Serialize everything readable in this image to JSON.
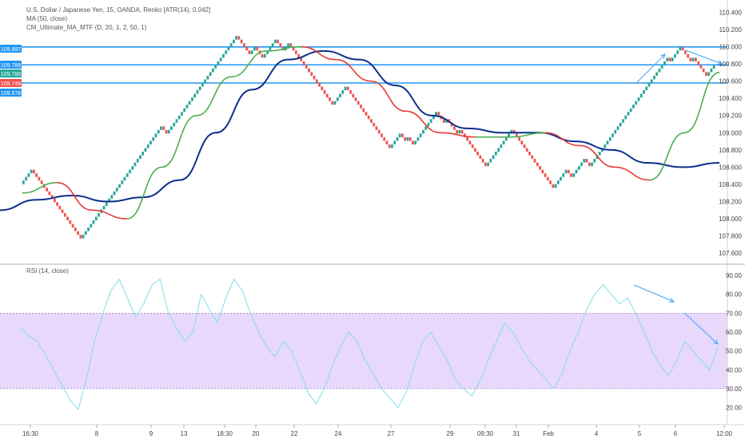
{
  "legend": {
    "symbol_line": "U.S. Dollar / Japanese Yen, 15, OANDA, Renko [ATR(14), 0.042]",
    "ma_line": "MA (50, close)",
    "cm_line": "CM_Ultimate_MA_MTF (D, 20, 1, 2, 50, 1)"
  },
  "rsi_title": "RSI (14, close)",
  "colors": {
    "up_brick": "#26a69a",
    "down_brick": "#ef5350",
    "ma50": "#0d2f8c",
    "cm_red": "#e53935",
    "cm_green": "#4caf50",
    "levels": "#2196f3",
    "rsi_line": "#80deea",
    "rsi_band": "#e8d8fb",
    "annotation": "#42a5f5"
  },
  "price_axis_ticks": [
    "110.400",
    "110.200",
    "110.000",
    "109.800",
    "109.600",
    "109.400",
    "109.200",
    "109.000",
    "108.800",
    "108.600",
    "108.400",
    "108.200",
    "108.000",
    "107.800",
    "107.600"
  ],
  "price_badges": [
    {
      "label": "109.997",
      "color": "#2196f3"
    },
    {
      "label": "109.789",
      "color": "#2196f3"
    },
    {
      "label": "109.788",
      "color": "#26a69a"
    },
    {
      "label": "109.749",
      "color": "#ef5350"
    },
    {
      "label": "109.578",
      "color": "#2196f3"
    }
  ],
  "rsi_axis_ticks": [
    "90.00",
    "80.00",
    "70.00",
    "60.00",
    "50.00",
    "40.00",
    "30.00",
    "20.00"
  ],
  "time_axis_ticks": [
    "16:30",
    "8",
    "9",
    "13",
    "18:30",
    "20",
    "22",
    "24",
    "27",
    "29",
    "09:30",
    "31",
    "Feb",
    "4",
    "5",
    "6",
    "12:00"
  ],
  "chart_data": [
    {
      "type": "renko",
      "title": "U.S. Dollar / Japanese Yen, 15, OANDA, Renko [ATR(14), 0.042]",
      "ylim": [
        107.5,
        110.45
      ],
      "brick_size": 0.042,
      "horizontal_levels": [
        109.997,
        109.789,
        109.578
      ],
      "price_path": [
        108.4,
        108.58,
        108.26,
        107.74,
        108.4,
        108.9,
        109.1,
        108.95,
        109.6,
        109.8,
        110.15,
        109.9,
        110.0,
        109.85,
        110.12,
        109.95,
        110.05,
        109.85,
        109.55,
        109.3,
        109.55,
        109.2,
        108.8,
        109.0,
        108.9,
        108.95,
        108.85,
        109.0,
        108.95,
        109.25,
        109.1,
        109.2,
        108.95,
        109.05,
        108.8,
        108.6,
        108.95,
        109.05,
        108.55,
        108.35,
        108.6,
        108.45,
        108.7,
        108.6,
        109.1,
        109.45,
        109.6,
        109.8,
        109.85,
        109.9,
        109.8,
        110.0,
        109.8,
        109.9,
        109.65,
        109.8
      ],
      "series": [
        {
          "name": "MA (50, close)",
          "x_frac": [
            0,
            0.05,
            0.1,
            0.15,
            0.2,
            0.25,
            0.3,
            0.35,
            0.4,
            0.45,
            0.5,
            0.55,
            0.6,
            0.65,
            0.7,
            0.75,
            0.8,
            0.85,
            0.9,
            0.95,
            1
          ],
          "values": [
            108.1,
            108.22,
            108.27,
            108.2,
            108.25,
            108.45,
            109.0,
            109.5,
            109.85,
            109.95,
            109.85,
            109.55,
            109.2,
            109.05,
            109.0,
            109.0,
            108.9,
            108.8,
            108.65,
            108.6,
            108.65
          ]
        },
        {
          "name": "CM_Ultimate_MA_MTF",
          "x_frac": [
            0,
            0.05,
            0.1,
            0.15,
            0.2,
            0.25,
            0.3,
            0.35,
            0.4,
            0.45,
            0.5,
            0.55,
            0.6,
            0.65,
            0.7,
            0.75,
            0.8,
            0.85,
            0.9,
            0.95,
            1
          ],
          "values": [
            108.3,
            108.42,
            108.1,
            108.0,
            108.6,
            109.2,
            109.65,
            109.95,
            110.0,
            109.85,
            109.6,
            109.25,
            109.0,
            108.95,
            108.95,
            109.0,
            108.85,
            108.6,
            108.45,
            109.0,
            109.7
          ]
        }
      ]
    },
    {
      "type": "line",
      "title": "RSI (14, close)",
      "ylim": [
        16,
        93
      ],
      "band": [
        30,
        70
      ],
      "series": [
        {
          "name": "RSI (14, close)",
          "values": [
            62,
            58,
            55,
            48,
            40,
            32,
            24,
            19,
            35,
            55,
            70,
            82,
            88,
            78,
            68,
            75,
            85,
            88,
            70,
            62,
            55,
            60,
            80,
            72,
            65,
            78,
            88,
            82,
            70,
            60,
            52,
            47,
            55,
            50,
            40,
            28,
            22,
            30,
            42,
            52,
            60,
            55,
            45,
            38,
            30,
            25,
            20,
            28,
            42,
            55,
            60,
            52,
            45,
            35,
            30,
            26,
            34,
            45,
            55,
            65,
            60,
            52,
            45,
            40,
            35,
            30,
            38,
            50,
            60,
            72,
            80,
            85,
            80,
            75,
            78,
            70,
            60,
            50,
            42,
            37,
            45,
            55,
            50,
            45,
            40,
            52
          ]
        }
      ]
    }
  ]
}
